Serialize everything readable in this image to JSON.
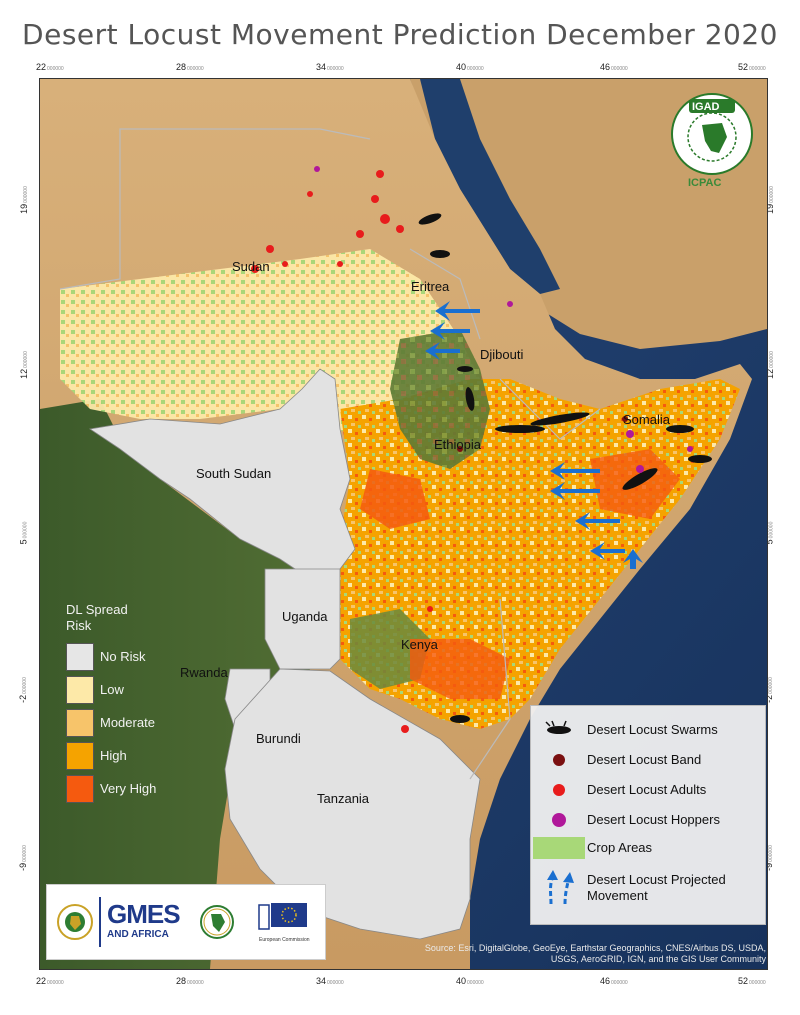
{
  "title": "Desert Locust Movement Prediction December 2020",
  "axes": {
    "x_ticks": [
      "22",
      "28",
      "34",
      "40",
      "46",
      "52"
    ],
    "y_ticks": [
      "19",
      "12",
      "5",
      "-2",
      "-9"
    ],
    "tick_suffix": "000000"
  },
  "places": {
    "sudan": "Sudan",
    "eritrea": "Eritrea",
    "djibouti": "Djibouti",
    "ethiopia": "Ethiopia",
    "somalia": "Somalia",
    "south_sudan": "South Sudan",
    "uganda": "Uganda",
    "kenya": "Kenya",
    "rwanda": "Rwanda",
    "burundi": "Burundi",
    "tanzania": "Tanzania"
  },
  "risk_legend": {
    "title": "DL Spread Risk",
    "levels": [
      {
        "label": "No Risk",
        "color": "#e6e6e6"
      },
      {
        "label": "Low",
        "color": "#fde9a8"
      },
      {
        "label": "Moderate",
        "color": "#f7c46a"
      },
      {
        "label": "High",
        "color": "#f5a300"
      },
      {
        "label": "Very High",
        "color": "#f55a0f"
      }
    ]
  },
  "symbol_legend": {
    "swarms": "Desert Locust Swarms",
    "band": "Desert Locust Band",
    "adults": "Desert Locust Adults",
    "hoppers": "Desert Locust Hoppers",
    "crop": "Crop Areas",
    "movement": "Desert Locust Projected Movement"
  },
  "colors": {
    "band": "#7a1010",
    "adults": "#e81c1c",
    "hoppers": "#b0189a",
    "crop": "#a8d878",
    "movement": "#1a6fd0",
    "sea": "#1f3e6e"
  },
  "logos": {
    "igad": "IGAD",
    "icpac": "ICPAC",
    "gmes_line1": "GMES",
    "gmes_line2": "AND AFRICA",
    "eu_caption": "European Commission"
  },
  "source": "Source: Esri, DigitalGlobe, GeoEye, Earthstar Geographics, CNES/Airbus DS, USDA, USGS, AeroGRID, IGN, and the GIS User Community"
}
